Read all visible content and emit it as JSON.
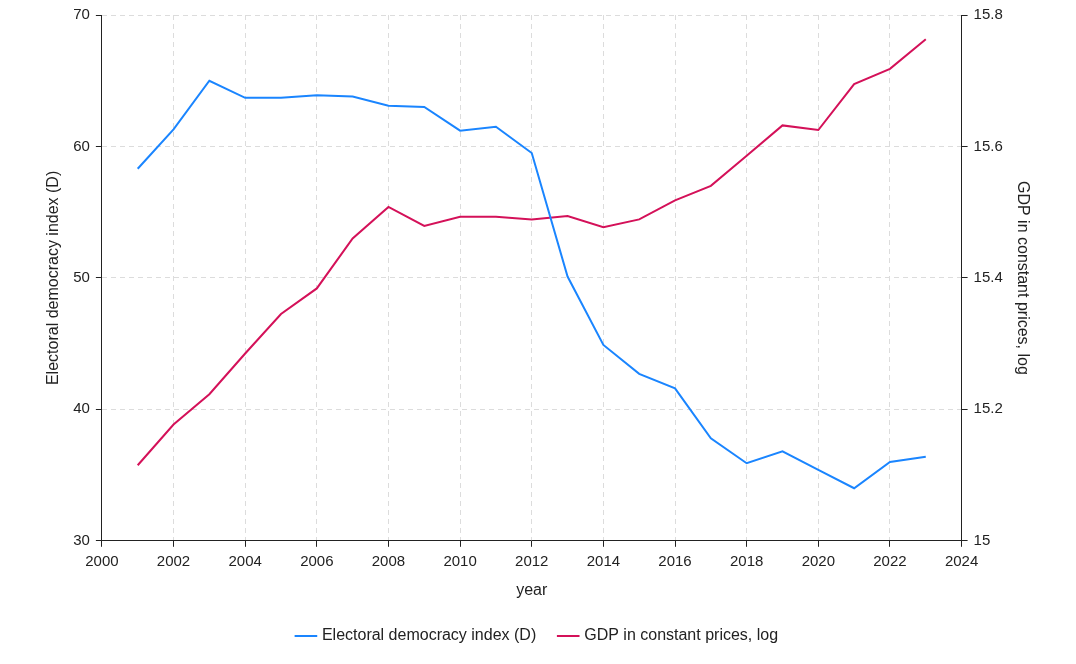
{
  "chart_data": {
    "type": "line",
    "x_label": "year",
    "y_label": "Electoral democracy index (D)",
    "y2_label": "GDP in constant prices, log",
    "x": [
      2001,
      2002,
      2003,
      2004,
      2005,
      2006,
      2007,
      2008,
      2009,
      2010,
      2011,
      2012,
      2013,
      2014,
      2015,
      2016,
      2017,
      2018,
      2019,
      2020,
      2021,
      2022,
      2023
    ],
    "series": [
      {
        "name": "Electoral democracy index (D)",
        "color": "#1a85ff",
        "values": [
          58.3,
          61.3,
          65.0,
          63.7,
          63.7,
          63.9,
          63.8,
          63.1,
          63.0,
          61.2,
          61.5,
          59.5,
          50.1,
          44.9,
          42.7,
          41.6,
          37.8,
          35.9,
          36.8,
          35.4,
          34.0,
          36.0,
          36.4
        ]
      },
      {
        "name": "GDP in constant prices, log",
        "color": "#d41159",
        "axis": "y2",
        "values": [
          15.115,
          15.177,
          15.223,
          15.285,
          15.345,
          15.384,
          15.46,
          15.508,
          15.479,
          15.493,
          15.493,
          15.489,
          15.494,
          15.477,
          15.489,
          15.518,
          15.54,
          15.586,
          15.632,
          15.625,
          15.695,
          15.718,
          15.763
        ]
      }
    ],
    "xlim": [
      2000,
      2024
    ],
    "xticks": [
      2000,
      2002,
      2004,
      2006,
      2008,
      2010,
      2012,
      2014,
      2016,
      2018,
      2020,
      2022,
      2024
    ],
    "ylim": [
      30,
      70
    ],
    "yticks": [
      30,
      40,
      50,
      60,
      70
    ],
    "y2lim": [
      15,
      15.8
    ],
    "y2ticks": [
      15,
      15.2,
      15.4,
      15.6,
      15.8
    ],
    "grid": true,
    "legend": "bottom"
  }
}
